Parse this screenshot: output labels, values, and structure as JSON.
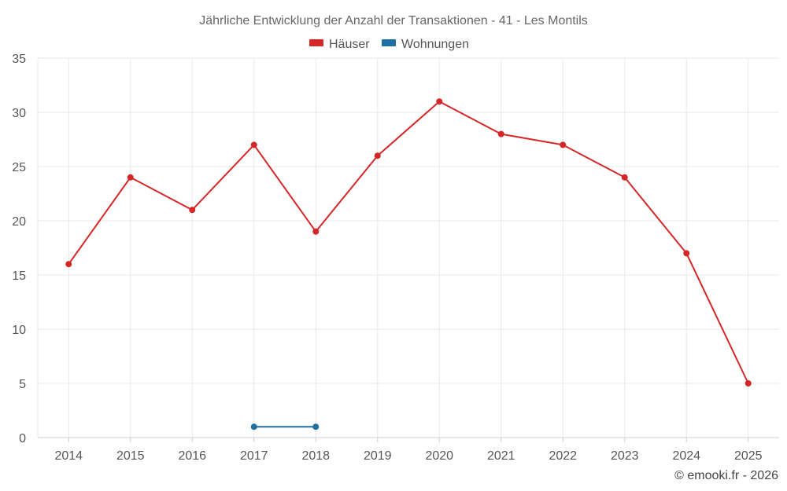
{
  "chart_data": {
    "type": "line",
    "title": "Jährliche Entwicklung der Anzahl der Transaktionen - 41 - Les Montils",
    "categories": [
      "2014",
      "2015",
      "2016",
      "2017",
      "2018",
      "2019",
      "2020",
      "2021",
      "2022",
      "2023",
      "2024",
      "2025"
    ],
    "series": [
      {
        "name": "Häuser",
        "color": "#d62728",
        "values": [
          16,
          24,
          21,
          27,
          19,
          26,
          31,
          28,
          27,
          24,
          17,
          5
        ]
      },
      {
        "name": "Wohnungen",
        "color": "#1f6fa3",
        "values": [
          null,
          null,
          null,
          1,
          1,
          null,
          null,
          null,
          null,
          null,
          null,
          null
        ]
      }
    ],
    "ylim": [
      0,
      35
    ],
    "yticks": [
      0,
      5,
      10,
      15,
      20,
      25,
      30,
      35
    ],
    "xlabel": "",
    "ylabel": "",
    "grid": true,
    "legend": "top-center"
  },
  "credit": "© emooki.fr - 2026"
}
